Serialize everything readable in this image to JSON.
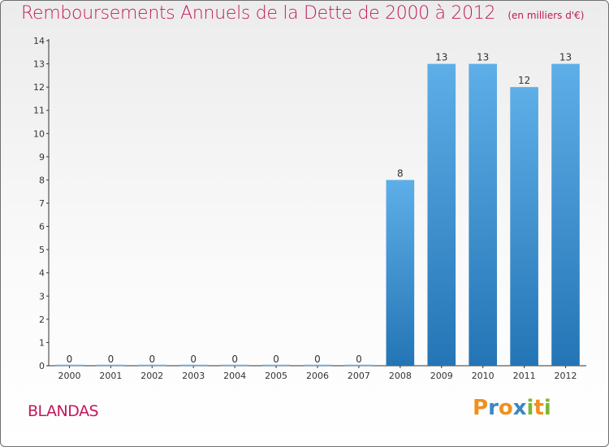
{
  "header": {
    "title": "Remboursements Annuels de la Dette de 2000 à 2012",
    "subtitle": "(en milliers d'€)"
  },
  "footer": {
    "commune": "BLANDAS",
    "logo_letters": [
      "P",
      "r",
      "o",
      "x",
      "i",
      "t",
      "i"
    ]
  },
  "colors": {
    "title": "#c2185b",
    "bar_top": "#5eaee8",
    "bar_bottom": "#2475b5",
    "axis": "#333333",
    "logo": [
      "#f0901e",
      "#3a86c8",
      "#f0901e",
      "#3a86c8",
      "#7cb82f",
      "#f0901e",
      "#7cb82f"
    ]
  },
  "chart_data": {
    "type": "bar",
    "title": "Remboursements Annuels de la Dette de 2000 à 2012",
    "subtitle": "(en milliers d'€)",
    "categories": [
      "2000",
      "2001",
      "2002",
      "2003",
      "2004",
      "2005",
      "2006",
      "2007",
      "2008",
      "2009",
      "2010",
      "2011",
      "2012"
    ],
    "values": [
      0,
      0,
      0,
      0,
      0,
      0,
      0,
      0,
      8,
      13,
      13,
      12,
      13
    ],
    "value_labels": [
      "0",
      "0",
      "0",
      "0",
      "0",
      "0",
      "0",
      "0",
      "8",
      "13",
      "13",
      "12",
      "13"
    ],
    "y_ticks": [
      0,
      1,
      2,
      3,
      4,
      5,
      6,
      7,
      8,
      9,
      10,
      11,
      12,
      13,
      14
    ],
    "ylim": [
      0,
      14
    ],
    "xlabel": "",
    "ylabel": "",
    "grid": false,
    "legend": "none"
  }
}
